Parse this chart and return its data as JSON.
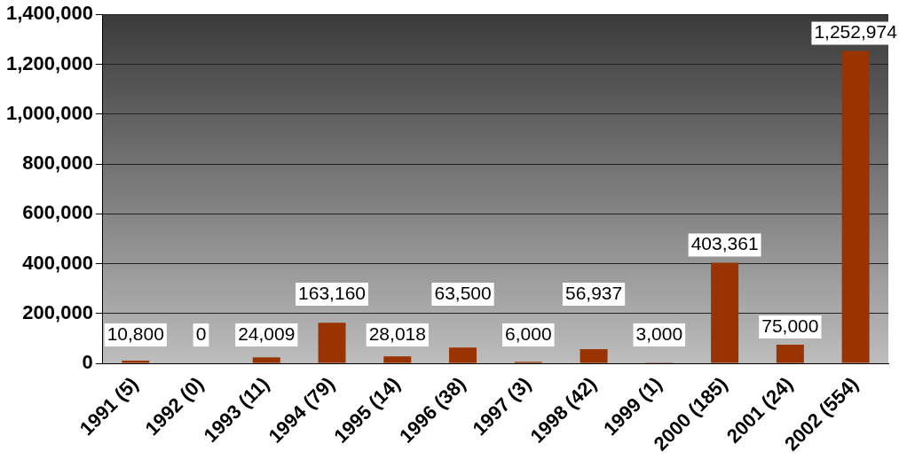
{
  "chart_data": {
    "type": "bar",
    "categories": [
      "1991 (5)",
      "1992 (0)",
      "1993 (11)",
      "1994 (79)",
      "1995 (14)",
      "1996 (38)",
      "1997 (3)",
      "1998 (42)",
      "1999 (1)",
      "2000 (185)",
      "2001 (24)",
      "2002 (554)"
    ],
    "values": [
      10800,
      0,
      24009,
      163160,
      28018,
      63500,
      6000,
      56937,
      3000,
      403361,
      75000,
      1252974
    ],
    "value_labels": [
      "10,800",
      "0",
      "24,009",
      "163,160",
      "28,018",
      "63,500",
      "6,000",
      "56,937",
      "3,000",
      "403,361",
      "75,000",
      "1,252,974"
    ],
    "color": "#993300",
    "ylim": [
      0,
      1400000
    ],
    "yticks": [
      0,
      {
        "value": 200000,
        "label": "200,000"
      },
      {
        "value": 400000,
        "label": "400,000"
      },
      {
        "value": 600000,
        "label": "600,000"
      },
      {
        "value": 800000,
        "label": "800,000"
      },
      {
        "value": 1000000,
        "label": "1,000,000"
      },
      {
        "value": 1200000,
        "label": "1,200,000"
      },
      {
        "value": 1400000,
        "label": "1,400,000"
      }
    ],
    "grid": "y",
    "legend": false
  }
}
